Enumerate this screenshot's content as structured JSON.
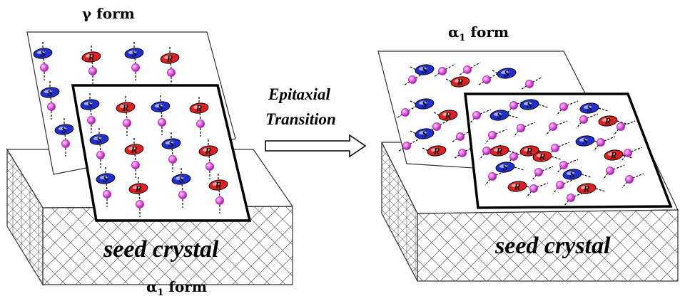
{
  "labels": {
    "gamma_form": "γ form",
    "alpha1_form_top": "α",
    "alpha1_form_top_sub": "1",
    "alpha1_form_top_suffix": " form",
    "alpha1_form_bottom": "α",
    "alpha1_form_bottom_sub": "1",
    "alpha1_form_bottom_suffix": " form",
    "epitaxial": "Epitaxial",
    "transition": "Transition",
    "seed_left": "seed crystal",
    "seed_right": "seed crystal"
  },
  "molecule_letters": {
    "s": "S",
    "r": "R"
  },
  "colors": {
    "s_molecule": "#1f2fd0",
    "r_molecule": "#e02020",
    "sphere": "#e85ce8",
    "sphere_edge": "#a020a0"
  }
}
